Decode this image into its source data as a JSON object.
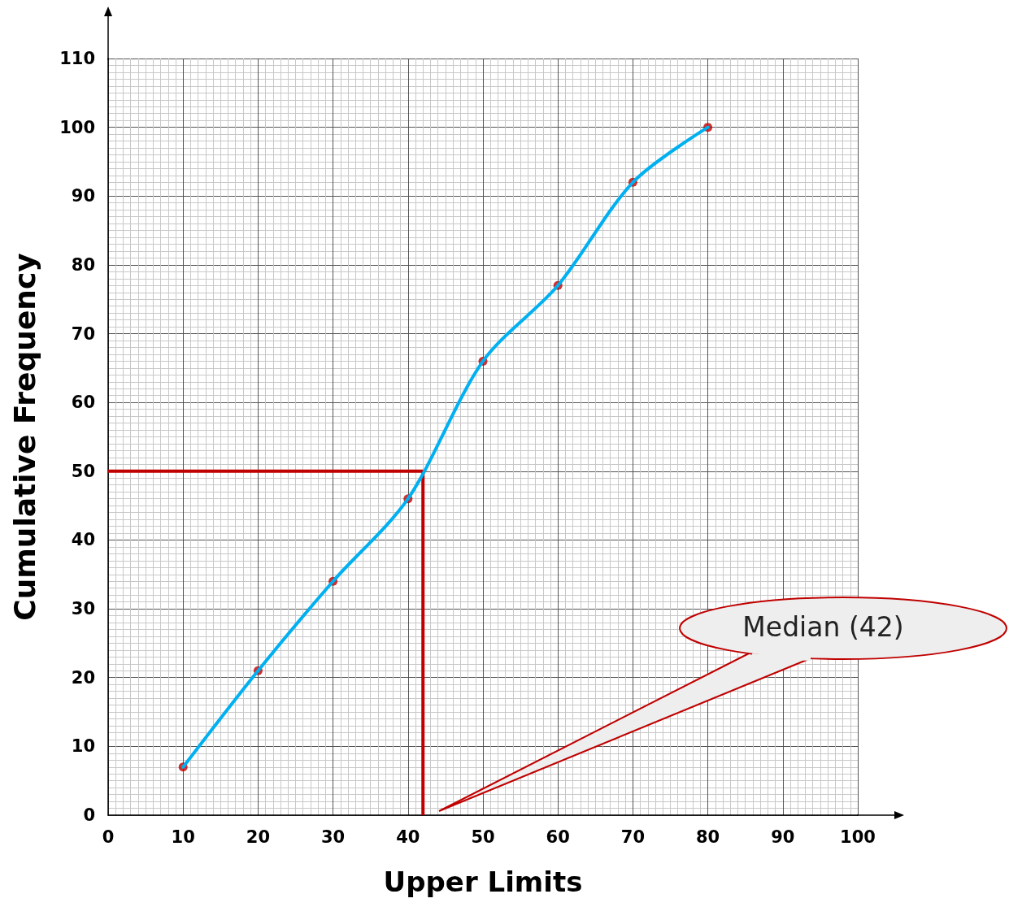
{
  "chart_data": {
    "type": "line",
    "xlabel": "Upper Limits",
    "ylabel": "Cumulative Frequency",
    "x": [
      10,
      20,
      30,
      40,
      50,
      60,
      70,
      80
    ],
    "series": [
      {
        "color": "#00b0f0",
        "values": [
          7,
          21,
          34,
          46,
          66,
          77,
          92,
          100
        ],
        "marker": "none",
        "line_style": "solid"
      },
      {
        "type": "scatter",
        "color": "#c00000",
        "values": [
          7,
          21,
          34,
          46,
          66,
          77,
          92,
          100
        ],
        "marker": "circle"
      }
    ],
    "xlim": [
      0,
      100
    ],
    "xticks": [
      0,
      10,
      20,
      30,
      40,
      50,
      60,
      70,
      80,
      90,
      100
    ],
    "ylim": [
      0,
      110
    ],
    "yticks": [
      0,
      10,
      20,
      30,
      40,
      50,
      60,
      70,
      80,
      90,
      100,
      110
    ],
    "grid": true,
    "ref_lines": [
      {
        "axis": "y",
        "value": 50,
        "color": "#c00000"
      },
      {
        "axis": "x",
        "value": 42,
        "color": "#c00000"
      }
    ],
    "annotations": [
      "Median (42)"
    ]
  }
}
